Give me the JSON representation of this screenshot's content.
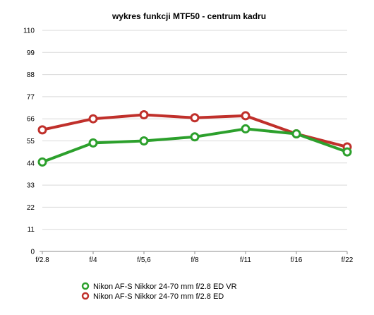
{
  "chart_data": {
    "type": "line",
    "title": "wykres funkcji MTF50 - centrum kadru",
    "xlabel": "",
    "ylabel": "",
    "categories": [
      "f/2.8",
      "f/4",
      "f/5,6",
      "f/8",
      "f/11",
      "f/16",
      "f/22"
    ],
    "yticks": [
      0,
      11,
      22,
      33,
      44,
      55,
      66,
      77,
      88,
      99,
      110
    ],
    "ylim": [
      0,
      110
    ],
    "grid": true,
    "legend_position": "bottom",
    "series": [
      {
        "name": "Nikon AF-S Nikkor 24-70 mm f/2.8 ED VR",
        "color": "#2ca02c",
        "values": [
          44.5,
          54,
          55,
          57,
          61,
          58.5,
          49.5
        ]
      },
      {
        "name": "Nikon AF-S Nikkor 24-70 mm f/2.8 ED",
        "color": "#c0302b",
        "values": [
          60.5,
          66,
          68,
          66.5,
          67.5,
          58.5,
          52
        ]
      }
    ]
  }
}
